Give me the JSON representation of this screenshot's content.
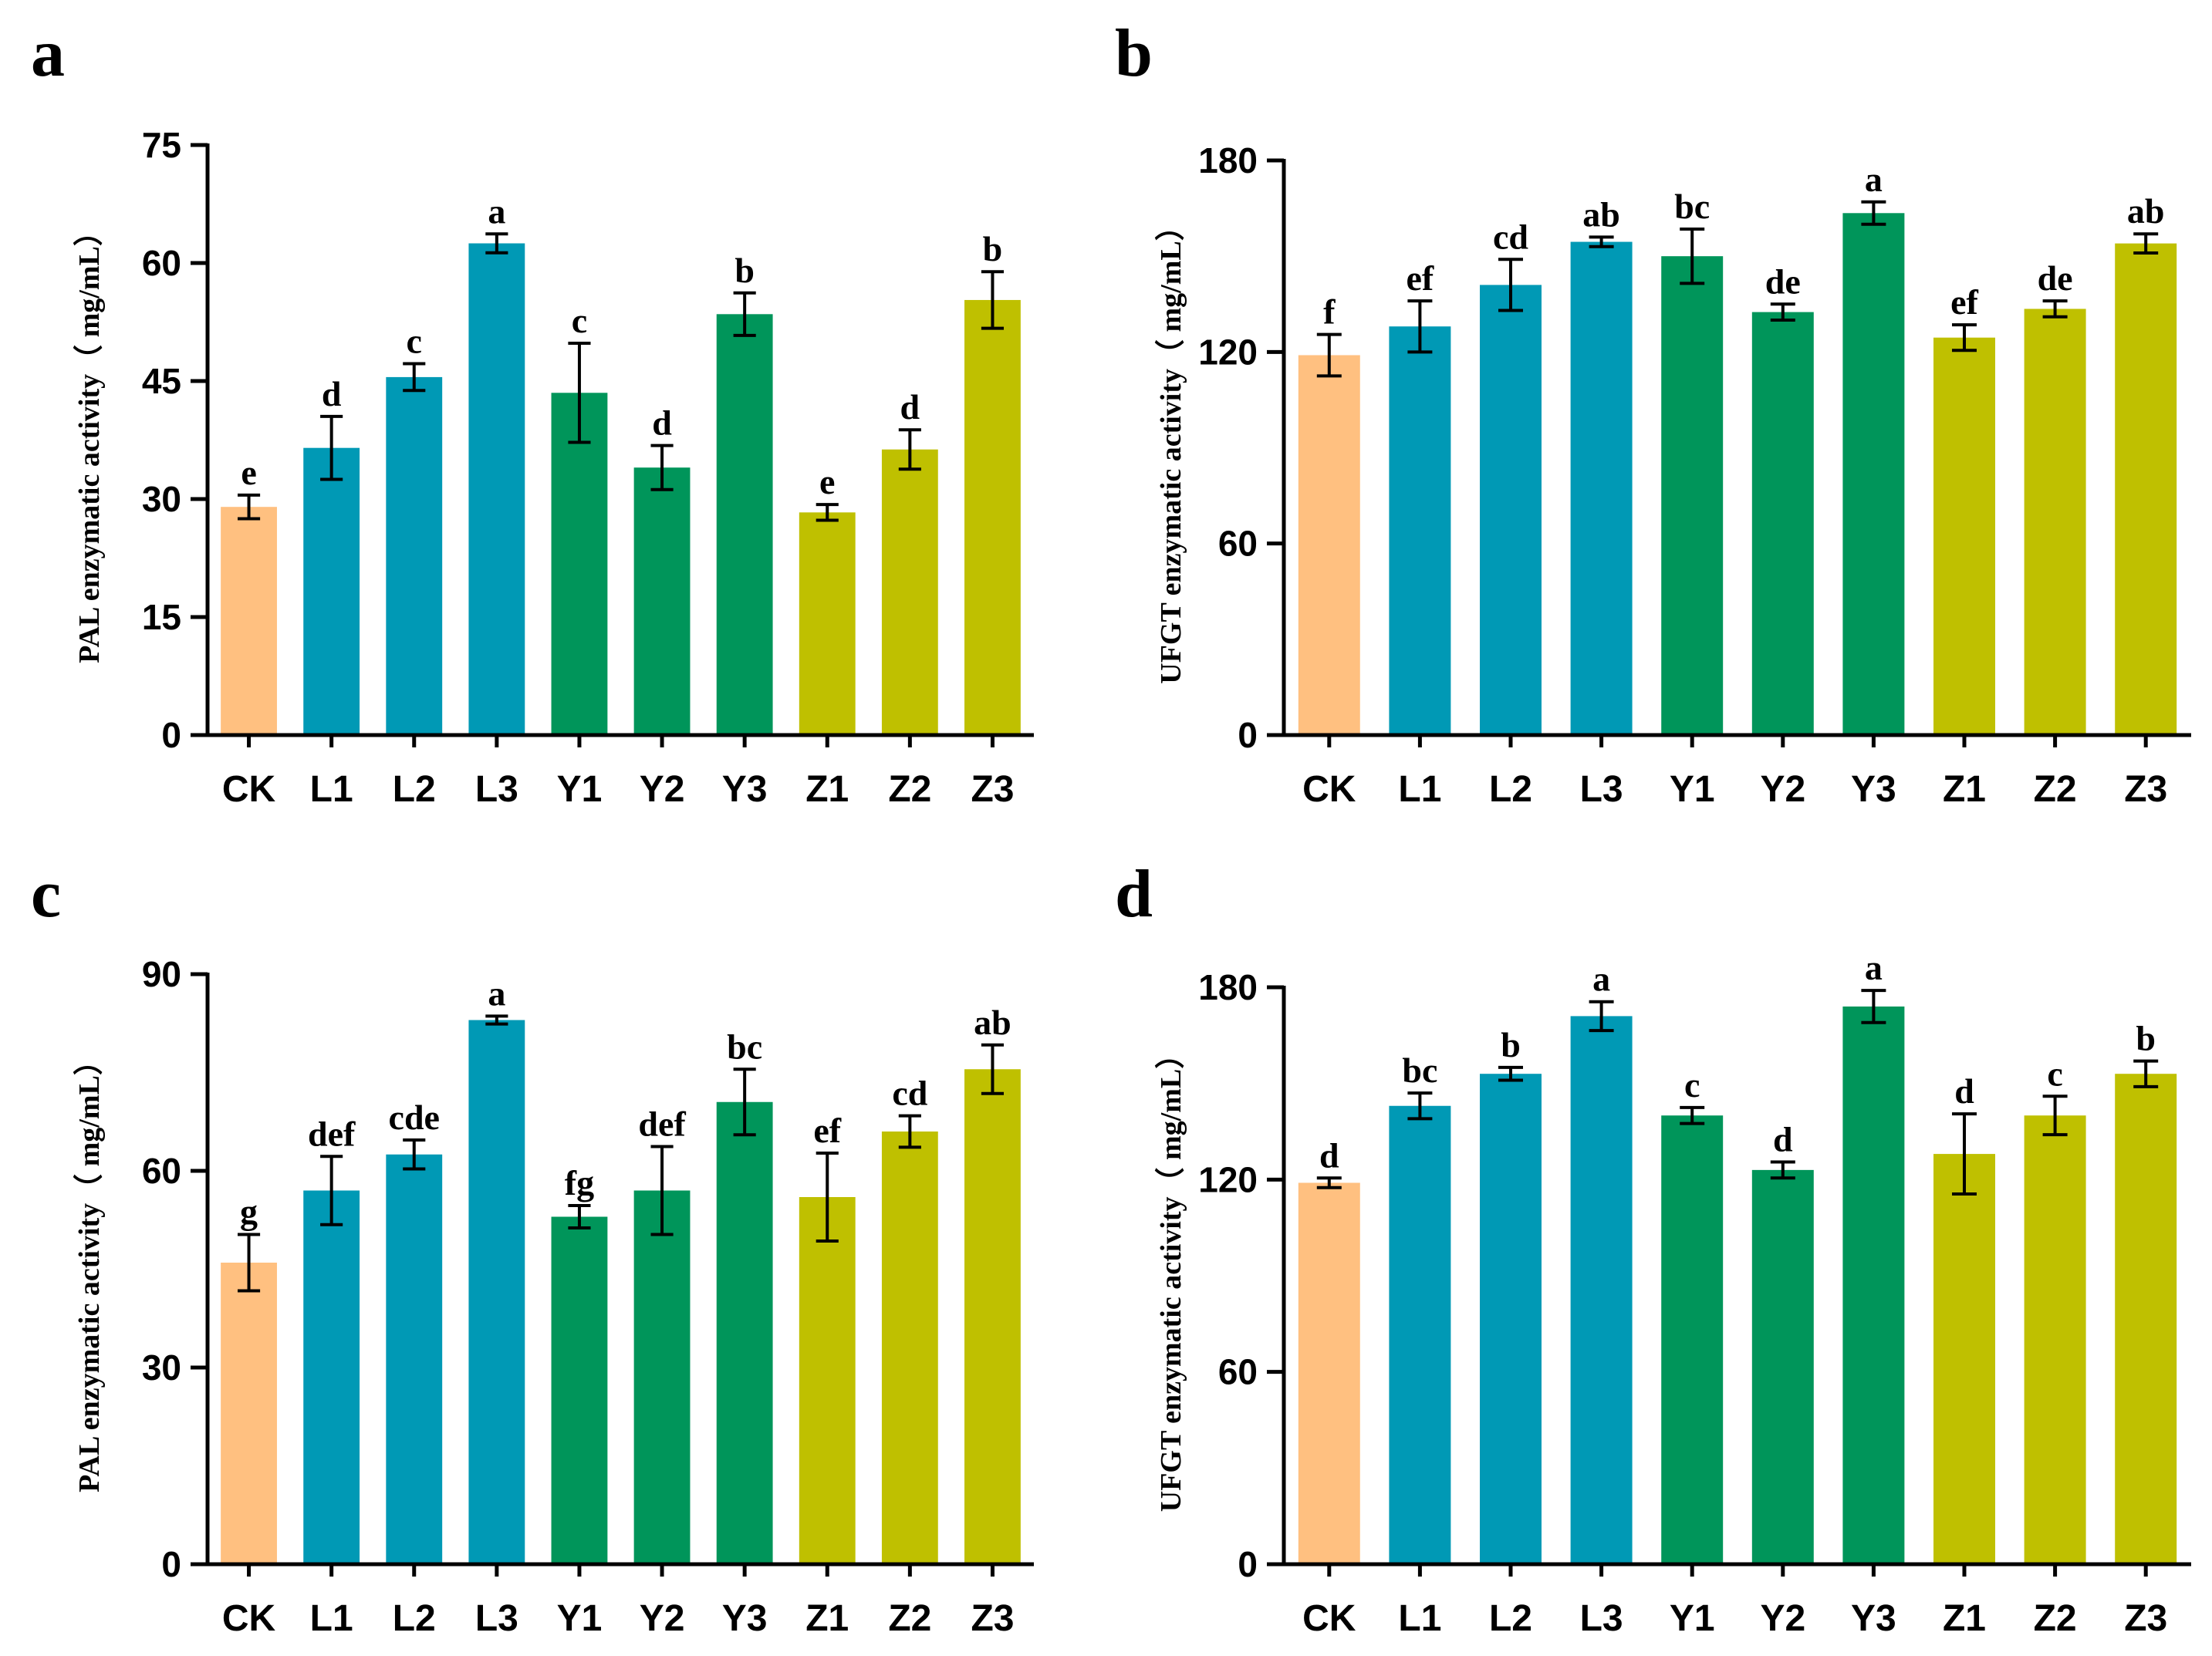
{
  "colors": {
    "CK": "#FFC080",
    "L": "#0099B5",
    "Y": "#00955A",
    "Z": "#BFC000",
    "axis": "#000000"
  },
  "chart_data": [
    {
      "panel": "a",
      "type": "bar",
      "ylabel": "PAL enzymatic activity（ mg/mL）",
      "ylim": [
        0,
        75
      ],
      "yticks": [
        0,
        15,
        30,
        45,
        60,
        75
      ],
      "categories": [
        "CK",
        "L1",
        "L2",
        "L3",
        "Y1",
        "Y2",
        "Y3",
        "Z1",
        "Z2",
        "Z3"
      ],
      "groups": [
        "CK",
        "L",
        "L",
        "L",
        "Y",
        "Y",
        "Y",
        "Z",
        "Z",
        "Z"
      ],
      "values": [
        29.0,
        36.5,
        45.5,
        62.5,
        43.5,
        34.0,
        53.5,
        28.3,
        36.3,
        55.3
      ],
      "errors": [
        1.5,
        4.0,
        1.7,
        1.2,
        6.3,
        2.8,
        2.7,
        1.0,
        2.5,
        3.6
      ],
      "letters": [
        "e",
        "d",
        "c",
        "a",
        "c",
        "d",
        "b",
        "e",
        "d",
        "b"
      ]
    },
    {
      "panel": "b",
      "type": "bar",
      "ylabel": "UFGT enzymatic activity（ mg/mL）",
      "ylim": [
        0,
        180
      ],
      "yticks": [
        0,
        60,
        120,
        180
      ],
      "categories": [
        "CK",
        "L1",
        "L2",
        "L3",
        "Y1",
        "Y2",
        "Y3",
        "Z1",
        "Z2",
        "Z3"
      ],
      "groups": [
        "CK",
        "L",
        "L",
        "L",
        "Y",
        "Y",
        "Y",
        "Z",
        "Z",
        "Z"
      ],
      "values": [
        119,
        128,
        141,
        154.5,
        150,
        132.5,
        163.5,
        124.5,
        133.5,
        154
      ],
      "errors": [
        6.5,
        8,
        8,
        1.5,
        8.5,
        2.5,
        3.5,
        4,
        2.5,
        3
      ],
      "letters": [
        "f",
        "ef",
        "cd",
        "ab",
        "bc",
        "de",
        "a",
        "ef",
        "de",
        "ab"
      ]
    },
    {
      "panel": "c",
      "type": "bar",
      "ylabel": "PAL enzymatic activity（ mg/mL）",
      "ylim": [
        0,
        90
      ],
      "yticks": [
        0,
        30,
        60,
        90
      ],
      "categories": [
        "CK",
        "L1",
        "L2",
        "L3",
        "Y1",
        "Y2",
        "Y3",
        "Z1",
        "Z2",
        "Z3"
      ],
      "groups": [
        "CK",
        "L",
        "L",
        "L",
        "Y",
        "Y",
        "Y",
        "Z",
        "Z",
        "Z"
      ],
      "values": [
        46,
        57,
        62.5,
        83,
        53,
        57,
        70.5,
        56,
        66,
        75.5
      ],
      "errors": [
        4.3,
        5.2,
        2.2,
        0.6,
        1.7,
        6.7,
        5,
        6.7,
        2.4,
        3.7
      ],
      "letters": [
        "g",
        "def",
        "cde",
        "a",
        "fg",
        "def",
        "bc",
        "ef",
        "cd",
        "ab"
      ]
    },
    {
      "panel": "d",
      "type": "bar",
      "ylabel": "UFGT enzymatic activity（ mg/mL）",
      "ylim": [
        0,
        180
      ],
      "yticks": [
        0,
        60,
        120,
        180
      ],
      "categories": [
        "CK",
        "L1",
        "L2",
        "L3",
        "Y1",
        "Y2",
        "Y3",
        "Z1",
        "Z2",
        "Z3"
      ],
      "groups": [
        "CK",
        "L",
        "L",
        "L",
        "Y",
        "Y",
        "Y",
        "Z",
        "Z",
        "Z"
      ],
      "values": [
        119,
        143,
        153,
        171,
        140,
        123,
        174,
        128,
        140,
        153
      ],
      "errors": [
        1.5,
        4,
        2,
        4.5,
        2.5,
        2.5,
        5,
        12.5,
        6,
        4
      ],
      "letters": [
        "d",
        "bc",
        "b",
        "a",
        "c",
        "d",
        "a",
        "d",
        "c",
        "b"
      ]
    }
  ]
}
